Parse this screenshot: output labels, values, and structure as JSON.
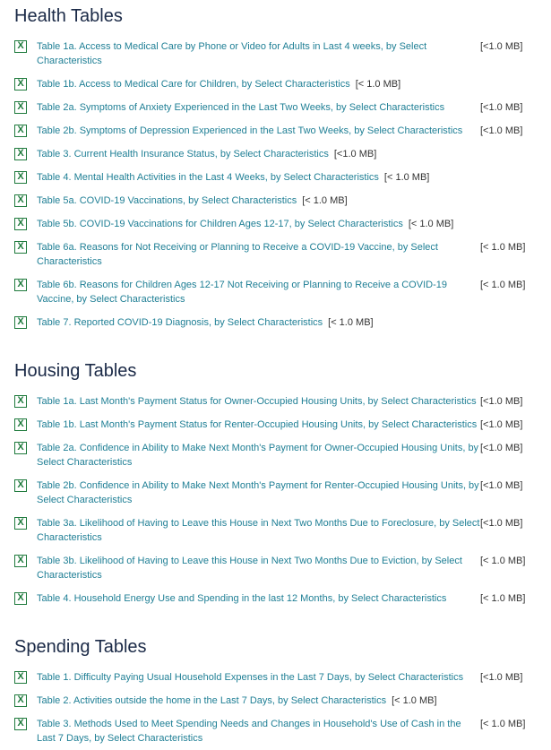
{
  "colors": {
    "heading": "#1b2a47",
    "link": "#1f7f95",
    "excel_icon": "#1e7a3c"
  },
  "sections": [
    {
      "title": "Health Tables",
      "items": [
        {
          "label": "Table 1a. Access to Medical Care by Phone or Video for Adults in Last 4 weeks, by Select Characteristics",
          "size": "[<1.0 MB]"
        },
        {
          "label": "Table 1b. Access to Medical Care for Children, by Select Characteristics",
          "size": "[< 1.0 MB]"
        },
        {
          "label": "Table 2a. Symptoms of Anxiety Experienced in the Last Two Weeks, by Select Characteristics",
          "size": "[<1.0 MB]"
        },
        {
          "label": "Table 2b. Symptoms of Depression Experienced in the Last Two Weeks, by Select Characteristics",
          "size": "[<1.0 MB]"
        },
        {
          "label": "Table 3. Current Health Insurance Status, by Select Characteristics",
          "size": "[<1.0 MB]"
        },
        {
          "label": "Table 4. Mental Health Activities in the Last 4 Weeks, by Select Characteristics",
          "size": "[< 1.0 MB]"
        },
        {
          "label": "Table 5a. COVID-19 Vaccinations, by Select Characteristics",
          "size": "[< 1.0 MB]"
        },
        {
          "label": "Table 5b. COVID-19 Vaccinations for Children Ages 12-17, by Select Characteristics",
          "size": "[< 1.0 MB]"
        },
        {
          "label": "Table 6a. Reasons for Not Receiving or Planning to Receive a COVID-19 Vaccine, by Select Characteristics",
          "size": "[< 1.0 MB]"
        },
        {
          "label": "Table 6b. Reasons for Children Ages 12-17 Not Receiving or Planning to Receive a COVID-19 Vaccine, by Select Characteristics",
          "size": "[< 1.0 MB]"
        },
        {
          "label": "Table 7. Reported COVID-19 Diagnosis, by Select Characteristics",
          "size": "[< 1.0 MB]"
        }
      ]
    },
    {
      "title": "Housing Tables",
      "items": [
        {
          "label": "Table 1a. Last Month's Payment Status for Owner-Occupied Housing Units, by Select Characteristics",
          "size": "[<1.0 MB]"
        },
        {
          "label": "Table 1b. Last Month's Payment Status for Renter-Occupied Housing Units, by Select Characteristics",
          "size": "[<1.0 MB]"
        },
        {
          "label": "Table 2a. Confidence in Ability to Make Next Month's Payment for Owner-Occupied Housing Units, by Select Characteristics",
          "size": "[<1.0 MB]"
        },
        {
          "label": "Table 2b. Confidence in Ability to Make Next Month's Payment for Renter-Occupied Housing Units, by Select Characteristics",
          "size": "[<1.0 MB]"
        },
        {
          "label": "Table 3a. Likelihood of Having to Leave this House in Next Two Months Due to Foreclosure, by Select Characteristics",
          "size": "[<1.0 MB]"
        },
        {
          "label": "Table 3b. Likelihood of Having to Leave this House in Next Two Months Due to Eviction, by Select Characteristics",
          "size": "[< 1.0 MB]"
        },
        {
          "label": "Table 4. Household Energy Use and Spending in the last 12 Months, by Select Characteristics",
          "size": "[< 1.0 MB]"
        }
      ]
    },
    {
      "title": "Spending Tables",
      "items": [
        {
          "label": "Table 1. Difficulty Paying Usual Household Expenses in the Last 7 Days, by Select Characteristics",
          "size": "[<1.0 MB]"
        },
        {
          "label": "Table 2. Activities outside the home in the Last 7 Days, by Select Characteristics",
          "size": "[< 1.0 MB]"
        },
        {
          "label": "Table 3. Methods Used to Meet Spending Needs and Changes in Household's Use of Cash in the Last 7 Days, by Select Characteristics",
          "size": "[< 1.0 MB]"
        }
      ]
    }
  ]
}
